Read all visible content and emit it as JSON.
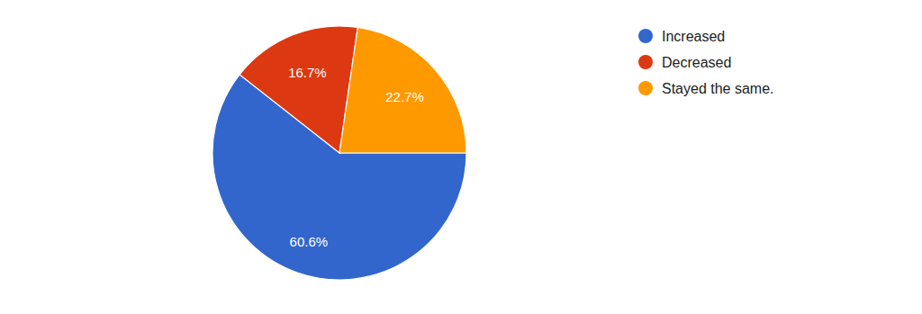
{
  "chart_data": {
    "type": "pie",
    "categories": [
      "Increased",
      "Decreased",
      "Stayed the same."
    ],
    "values": [
      60.6,
      16.7,
      22.7
    ],
    "value_labels": [
      "60.6%",
      "16.7%",
      "22.7%"
    ],
    "colors": [
      "#3366cc",
      "#dc3912",
      "#ff9900"
    ],
    "data_labels": true,
    "legend": "top-right"
  }
}
